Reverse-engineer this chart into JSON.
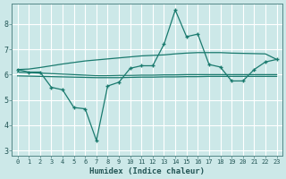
{
  "xlabel": "Humidex (Indice chaleur)",
  "x": [
    0,
    1,
    2,
    3,
    4,
    5,
    6,
    7,
    8,
    9,
    10,
    11,
    12,
    13,
    14,
    15,
    16,
    17,
    18,
    19,
    20,
    21,
    22,
    23
  ],
  "line_main": [
    6.2,
    6.1,
    6.1,
    5.5,
    5.4,
    4.7,
    4.65,
    3.4,
    5.55,
    5.7,
    6.25,
    6.35,
    6.35,
    7.2,
    8.55,
    7.5,
    7.6,
    6.4,
    6.3,
    5.75,
    5.75,
    6.2,
    6.5,
    6.6
  ],
  "line_upper": [
    6.2,
    6.22,
    6.28,
    6.35,
    6.42,
    6.48,
    6.54,
    6.58,
    6.62,
    6.66,
    6.7,
    6.74,
    6.76,
    6.78,
    6.82,
    6.85,
    6.87,
    6.87,
    6.87,
    6.85,
    6.84,
    6.83,
    6.82,
    6.6
  ],
  "line_mid1": [
    6.1,
    6.08,
    6.06,
    6.04,
    6.02,
    6.0,
    5.98,
    5.96,
    5.96,
    5.97,
    5.97,
    5.98,
    5.98,
    5.99,
    5.99,
    6.0,
    6.0,
    6.0,
    6.0,
    6.0,
    6.0,
    6.0,
    6.0,
    6.0
  ],
  "line_mid2": [
    5.95,
    5.94,
    5.93,
    5.92,
    5.91,
    5.9,
    5.89,
    5.88,
    5.88,
    5.88,
    5.89,
    5.9,
    5.9,
    5.91,
    5.91,
    5.92,
    5.92,
    5.93,
    5.93,
    5.93,
    5.93,
    5.93,
    5.93,
    5.93
  ],
  "bg_color": "#cce8e8",
  "grid_color": "#ffffff",
  "line_color": "#1a7a6e",
  "ylim": [
    2.8,
    8.8
  ],
  "yticks": [
    3,
    4,
    5,
    6,
    7,
    8
  ],
  "xticks": [
    0,
    1,
    2,
    3,
    4,
    5,
    6,
    7,
    8,
    9,
    10,
    11,
    12,
    13,
    14,
    15,
    16,
    17,
    18,
    19,
    20,
    21,
    22,
    23
  ]
}
